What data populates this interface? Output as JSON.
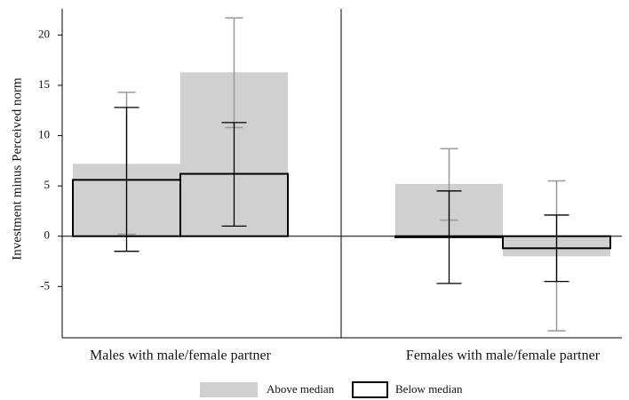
{
  "chart_data": {
    "type": "bar",
    "y_label": "Investment minus Perceived norm",
    "categories": [
      "Males with male/female partner",
      "Females with male/female partner"
    ],
    "series": [
      {
        "name": "Above median",
        "color": "#d0d0d0",
        "error_color": "#999999",
        "values": [
          [
            7.2,
            16.3
          ],
          [
            5.2,
            -2.0
          ]
        ],
        "ci_low": [
          [
            0.2,
            10.8
          ],
          [
            1.6,
            -9.4
          ]
        ],
        "ci_high": [
          [
            14.3,
            21.7
          ],
          [
            8.7,
            5.5
          ]
        ]
      },
      {
        "name": "Below median",
        "color": "#000000",
        "error_color": "#000000",
        "values": [
          [
            5.6,
            6.2
          ],
          [
            -0.1,
            -1.2
          ]
        ],
        "ci_low": [
          [
            -1.5,
            1.0
          ],
          [
            -4.7,
            -4.5
          ]
        ],
        "ci_high": [
          [
            12.8,
            11.3
          ],
          [
            4.5,
            2.1
          ]
        ]
      }
    ],
    "ylim": [
      -10.1,
      22.6
    ],
    "yticks": [
      -5,
      0,
      5,
      10,
      15,
      20
    ]
  }
}
